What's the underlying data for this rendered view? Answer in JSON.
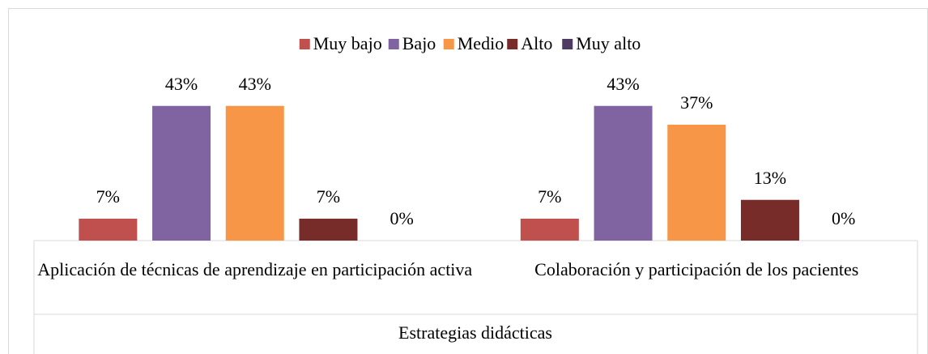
{
  "chart_data": {
    "type": "bar",
    "categories": [
      "Aplicación de técnicas de aprendizaje en participación activa",
      "Colaboración y participación de los pacientes"
    ],
    "axis_label": "Estrategias didácticas",
    "series": [
      {
        "name": "Muy bajo",
        "color": "#c0504d",
        "values": [
          7,
          7
        ],
        "value_labels": [
          "7%",
          "7%"
        ]
      },
      {
        "name": "Bajo",
        "color": "#8064a2",
        "values": [
          43,
          43
        ],
        "value_labels": [
          "43%",
          "43%"
        ]
      },
      {
        "name": "Medio",
        "color": "#f79646",
        "values": [
          43,
          37
        ],
        "value_labels": [
          "43%",
          "37%"
        ]
      },
      {
        "name": "Alto",
        "color": "#772c2a",
        "values": [
          7,
          13
        ],
        "value_labels": [
          "7%",
          "13%"
        ]
      },
      {
        "name": "Muy alto",
        "color": "#4f3b62",
        "values": [
          0,
          0
        ],
        "value_labels": [
          "0%",
          "0%"
        ]
      }
    ],
    "ylim": [
      0,
      45
    ],
    "legend": "top"
  }
}
